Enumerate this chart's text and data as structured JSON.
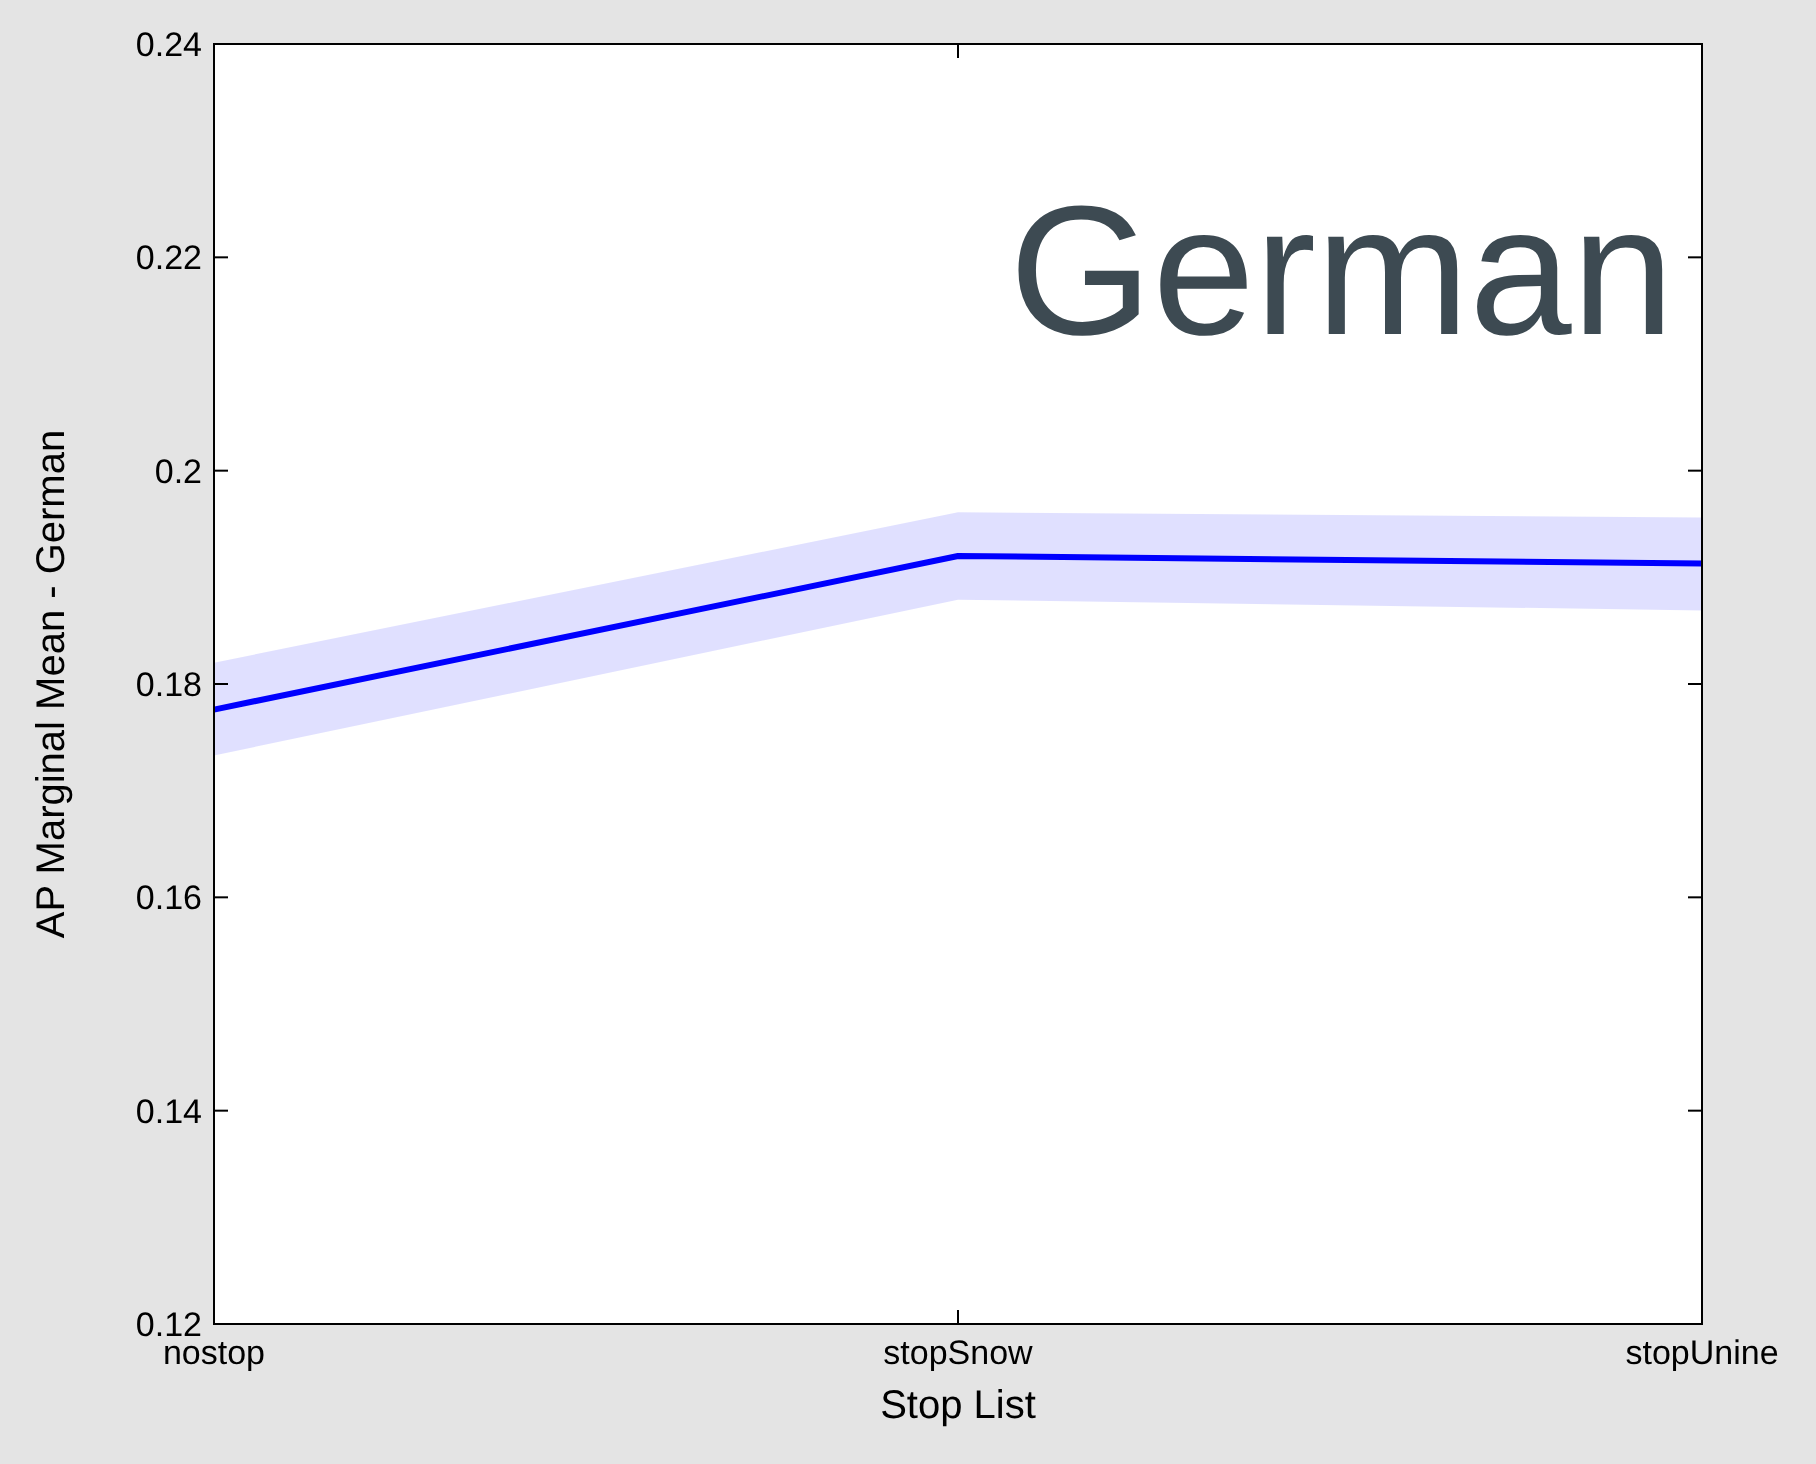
{
  "chart_data": {
    "type": "line",
    "xlabel": "Stop List",
    "ylabel": "AP Marginal Mean - German",
    "categories": [
      "nostop",
      "stopSnow",
      "stopUnine"
    ],
    "series": [
      {
        "color": "#0000ff",
        "values": [
          0.1776,
          0.192,
          0.1913
        ],
        "lower": [
          0.1733,
          0.1879,
          0.1869
        ],
        "upper": [
          0.182,
          0.1961,
          0.1956
        ]
      }
    ],
    "ylim": [
      0.12,
      0.24
    ],
    "yticks": [
      0.12,
      0.14,
      0.16,
      0.18,
      0.2,
      0.22,
      0.24
    ],
    "grid": false,
    "marker": "none",
    "line_style": "solid",
    "annotations": [
      "German"
    ]
  }
}
